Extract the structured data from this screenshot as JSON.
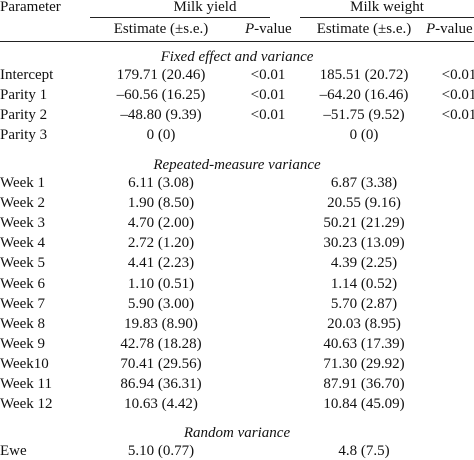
{
  "header": {
    "parameter": "Parameter",
    "milk_yield": "Milk yield",
    "milk_weight": "Milk weight",
    "estimate": "Estimate (±s.e.)",
    "p_prefix": "P",
    "p_suffix": "-value"
  },
  "sections": {
    "fixed": "Fixed effect and variance",
    "repeated": "Repeated-measure variance",
    "random": "Random variance"
  },
  "fixed_rows": [
    {
      "param": "Intercept",
      "y_est": "179.71 (20.46)",
      "y_p": "<0.01",
      "w_est": "185.51 (20.72)",
      "w_p": "<0.01"
    },
    {
      "param": "Parity 1",
      "y_est": "–60.56 (16.25)",
      "y_p": "<0.01",
      "w_est": "–64.20 (16.46)",
      "w_p": "<0.01"
    },
    {
      "param": "Parity 2",
      "y_est": "–48.80 (9.39)",
      "y_p": "<0.01",
      "w_est": "–51.75 (9.52)",
      "w_p": "<0.01"
    },
    {
      "param": "Parity 3",
      "y_est": "0 (0)",
      "y_p": "",
      "w_est": "0 (0)",
      "w_p": ""
    }
  ],
  "repeated_rows": [
    {
      "param": "Week 1",
      "y_est": "6.11 (3.08)",
      "w_est": "6.87 (3.38)"
    },
    {
      "param": "Week 2",
      "y_est": "1.90 (8.50)",
      "w_est": "20.55 (9.16)"
    },
    {
      "param": "Week 3",
      "y_est": "4.70 (2.00)",
      "w_est": "50.21 (21.29)"
    },
    {
      "param": "Week 4",
      "y_est": "2.72 (1.20)",
      "w_est": "30.23 (13.09)"
    },
    {
      "param": "Week 5",
      "y_est": "4.41 (2.23)",
      "w_est": "4.39 (2.25)"
    },
    {
      "param": "Week 6",
      "y_est": "1.10 (0.51)",
      "w_est": "1.14 (0.52)"
    },
    {
      "param": "Week 7",
      "y_est": "5.90 (3.00)",
      "w_est": "5.70 (2.87)"
    },
    {
      "param": "Week 8",
      "y_est": "19.83 (8.90)",
      "w_est": "20.03 (8.95)"
    },
    {
      "param": "Week 9",
      "y_est": "42.78 (18.28)",
      "w_est": "40.63 (17.39)"
    },
    {
      "param": "Week10",
      "y_est": "70.41 (29.56)",
      "w_est": "71.30 (29.92)"
    },
    {
      "param": "Week 11",
      "y_est": "86.94 (36.31)",
      "w_est": "87.91 (36.70)"
    },
    {
      "param": "Week 12",
      "y_est": "10.63 (4.42)",
      "w_est": "10.84 (45.09)"
    }
  ],
  "random_rows": [
    {
      "param": "Ewe",
      "y_est": "5.10 (0.77)",
      "w_est": "4.8 (7.5)"
    }
  ]
}
